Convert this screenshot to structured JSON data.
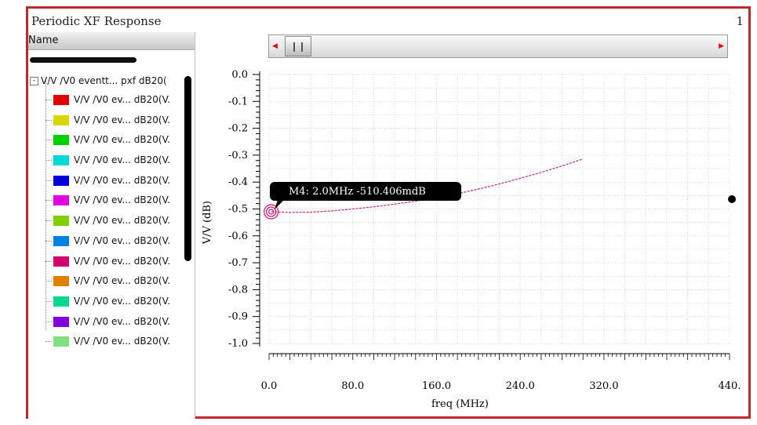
{
  "window": {
    "title": "Periodic XF Response",
    "number": "1"
  },
  "panel": {
    "header": "Name",
    "root_label": "V/V /V0 eventt... pxf dB20(",
    "items": [
      {
        "label": "V/V /V0 ev... dB20(V.",
        "color": "#e00000"
      },
      {
        "label": "V/V /V0 ev... dB20(V.",
        "color": "#d8d800"
      },
      {
        "label": "V/V /V0 ev... dB20(V.",
        "color": "#00d000"
      },
      {
        "label": "V/V /V0 ev... dB20(V.",
        "color": "#00d8d8"
      },
      {
        "label": "V/V /V0 ev... dB20(V.",
        "color": "#0000d8"
      },
      {
        "label": "V/V /V0 ev... dB20(V.",
        "color": "#e000e0"
      },
      {
        "label": "V/V /V0 ev... dB20(V.",
        "color": "#80d000"
      },
      {
        "label": "V/V /V0 ev... dB20(V.",
        "color": "#0080e0"
      },
      {
        "label": "V/V /V0 ev... dB20(V.",
        "color": "#d00070"
      },
      {
        "label": "V/V /V0 ev... dB20(V.",
        "color": "#e08000"
      },
      {
        "label": "V/V /V0 ev... dB20(V.",
        "color": "#00d890"
      },
      {
        "label": "V/V /V0 ev... dB20(V.",
        "color": "#8000e0"
      },
      {
        "label": "V/V /V0 ev... dB20(V.",
        "color": "#80e080"
      }
    ]
  },
  "chart_data": {
    "type": "line",
    "xlabel": "freq (MHz)",
    "ylabel": "V/V (dB)",
    "xlim": [
      0,
      440
    ],
    "ylim": [
      -1.0,
      0.0
    ],
    "xticks": [
      "0.0",
      "80.0",
      "160.0",
      "240.0",
      "320.0",
      "440."
    ],
    "xtick_values": [
      0,
      80,
      160,
      240,
      320,
      440
    ],
    "yticks": [
      "0.0",
      "-0.1",
      "-0.2",
      "-0.3",
      "-0.4",
      "-0.5",
      "-0.6",
      "-0.7",
      "-0.8",
      "-0.9",
      "-1.0"
    ],
    "ytick_values": [
      0,
      -0.1,
      -0.2,
      -0.3,
      -0.4,
      -0.5,
      -0.6,
      -0.7,
      -0.8,
      -0.9,
      -1.0
    ],
    "grid": true,
    "series": [
      {
        "color": "#d0207a",
        "x": [
          2,
          20,
          40,
          60,
          80,
          100,
          120,
          140,
          160,
          180,
          200,
          220,
          240,
          260,
          280,
          300
        ],
        "y": [
          -0.51,
          -0.513,
          -0.512,
          -0.507,
          -0.5,
          -0.492,
          -0.482,
          -0.471,
          -0.458,
          -0.443,
          -0.426,
          -0.407,
          -0.386,
          -0.364,
          -0.34,
          -0.314
        ]
      }
    ],
    "marker": {
      "label": "M4: 2.0MHz -510.406mdB",
      "x": 2.0,
      "y": -0.5104
    }
  }
}
